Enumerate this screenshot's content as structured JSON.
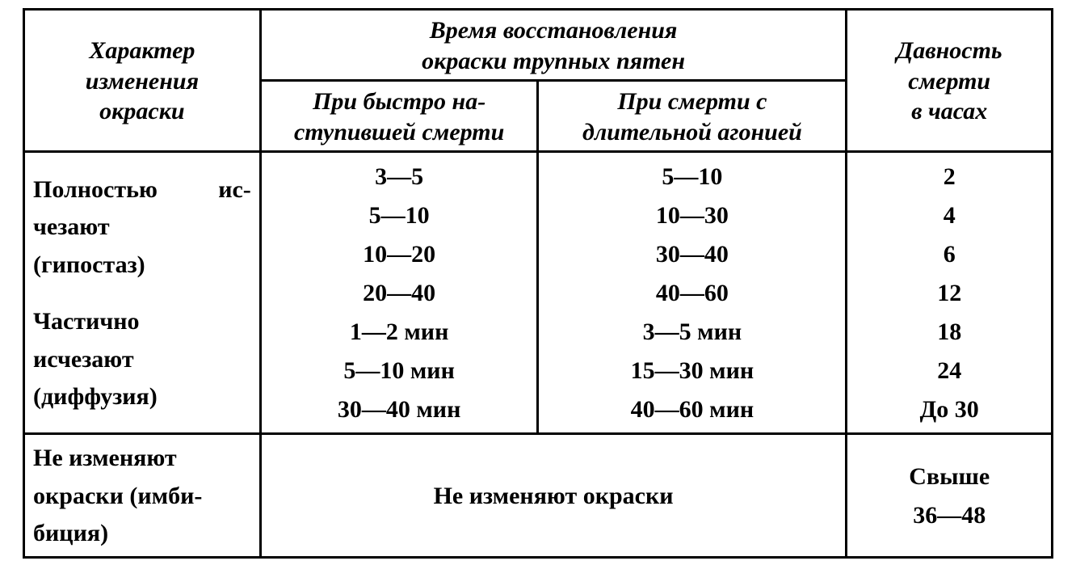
{
  "table": {
    "columns_width_pct": [
      23,
      27,
      30,
      20
    ],
    "border_color": "#000000",
    "background_color": "#ffffff",
    "text_color": "#000000",
    "font_family": "Times New Roman",
    "header": {
      "col1": "Характер\nизменения\nокраски",
      "col2_group": "Время восстановления\nокраски трупных пятен",
      "col2a": "При быстро на-\nступившей смерти",
      "col2b": "При смерти с\nдлительной агонией",
      "col3": "Давность\nсмерти\nв часах",
      "fontsize_pt": 22,
      "font_style": "bold italic"
    },
    "body": {
      "fontsize_pt": 22,
      "font_weight": "bold",
      "row1": {
        "label_line1_left": "Полностью",
        "label_line1_right": "ис-",
        "label_line2": "чезают",
        "label_line3": "(гипостаз)",
        "label2_line1": "Частично",
        "label2_line2": "исчезают",
        "label2_line3": "(диффузия)",
        "fast": [
          "3—5",
          "5—10",
          "10—20",
          "20—40",
          "1—2 мин",
          "5—10 мин",
          "30—40 мин"
        ],
        "slow": [
          "5—10",
          "10—30",
          "30—40",
          "40—60",
          "3—5 мин",
          "15—30 мин",
          "40—60 мин"
        ],
        "hours": [
          "2",
          "4",
          "6",
          "12",
          "18",
          "24",
          "До 30"
        ]
      },
      "row2": {
        "label_line1": "Не изменяют",
        "label_line2": "окраски (имби-",
        "label_line3": "биция)",
        "merged_text": "Не изменяют окраски",
        "hours_line1": "Свыше",
        "hours_line2": "36—48"
      }
    }
  }
}
